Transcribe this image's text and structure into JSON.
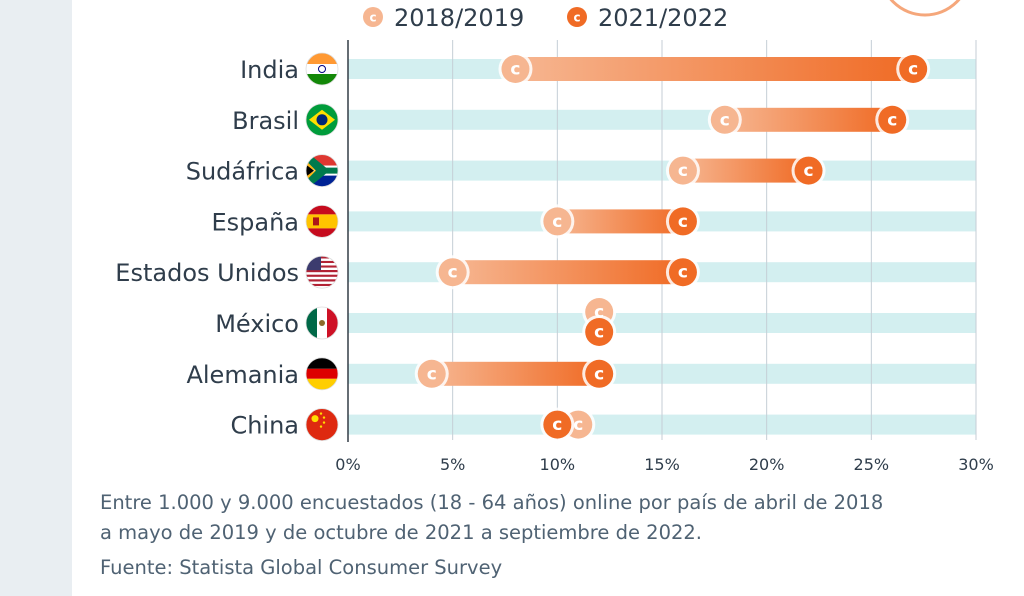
{
  "chart_data": {
    "type": "dumbbell",
    "unit": "%",
    "xlim": [
      0,
      30
    ],
    "ticks": [
      0,
      5,
      10,
      15,
      20,
      25,
      30
    ],
    "tick_labels": [
      "0%",
      "5%",
      "10%",
      "15%",
      "20%",
      "25%",
      "30%"
    ],
    "legend": [
      {
        "name": "2018/2019",
        "color": "#f6b691"
      },
      {
        "name": "2021/2022",
        "color": "#f06b25"
      }
    ],
    "categories": [
      "India",
      "Brasil",
      "Sudáfrica",
      "España",
      "Estados Unidos",
      "México",
      "Alemania",
      "China"
    ],
    "series": [
      {
        "name": "2018/2019",
        "values": [
          8,
          18,
          16,
          10,
          5,
          12,
          4,
          11
        ]
      },
      {
        "name": "2021/2022",
        "values": [
          27,
          26,
          22,
          16,
          16,
          12,
          12,
          10
        ]
      }
    ],
    "flags": [
      "flag-india",
      "flag-brazil",
      "flag-south-africa",
      "flag-spain",
      "flag-usa",
      "flag-mexico",
      "flag-germany",
      "flag-china"
    ],
    "marker_glyph": "c"
  },
  "footnote": {
    "line1": "Entre 1.000 y 9.000 encuestados (18 - 64 años) online por país de abril de 2018",
    "line2": "a mayo de 2019 y de octubre de 2021 a septiembre de 2022.",
    "source": "Fuente: Statista Global Consumer Survey"
  },
  "colors": {
    "track": "#d3eff0",
    "grid": "#c5ced6",
    "axis": "#333d47",
    "light_orange": "#f6b691",
    "dark_orange": "#f06b25",
    "text": "#2f3d4b"
  }
}
